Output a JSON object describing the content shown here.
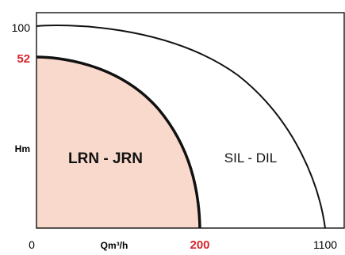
{
  "chart_data": {
    "type": "area",
    "title": "",
    "xlabel": "Qm³/h",
    "ylabel": "Hm",
    "grid": false,
    "legend": "none",
    "x_ticks": [
      {
        "label": "0",
        "value": 0,
        "color": "#000000"
      },
      {
        "label": "200",
        "value": 200,
        "color": "#d6252b"
      },
      {
        "label": "1100",
        "value": 1100,
        "color": "#000000"
      }
    ],
    "y_ticks": [
      {
        "label": "100",
        "value": 100,
        "color": "#000000"
      },
      {
        "label": "52",
        "value": 52,
        "color": "#d6252b"
      }
    ],
    "series": [
      {
        "name": "LRN - JRN",
        "max_flow": 200,
        "max_head": 52,
        "fill": "#f9d9cb",
        "stroke": "#111111"
      },
      {
        "name": "SIL - DIL",
        "max_flow": 1100,
        "max_head": 100,
        "fill": "none",
        "stroke": "#111111"
      }
    ]
  }
}
